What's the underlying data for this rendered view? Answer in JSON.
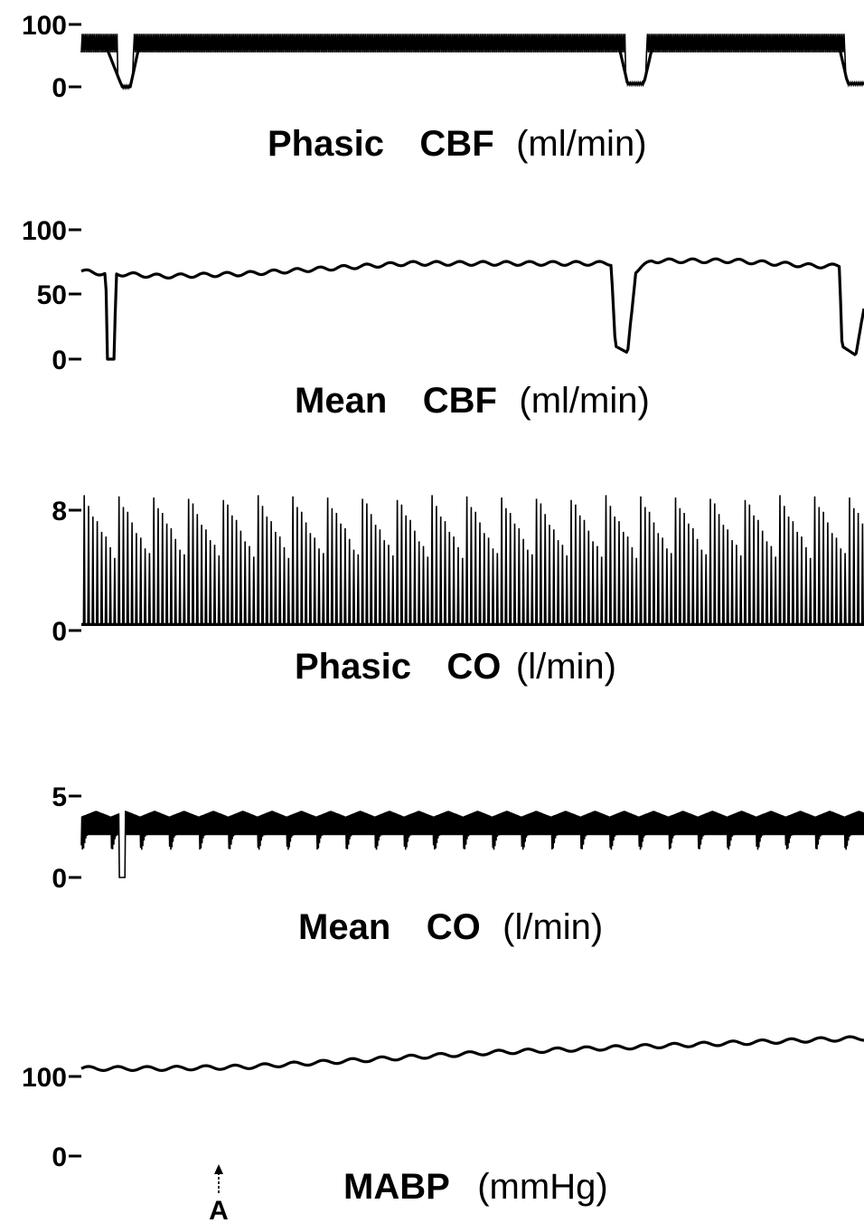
{
  "chart_data": [
    {
      "type": "line",
      "title": "Phasic CBF (ml/min)",
      "title_parts": [
        "Phasic",
        "CBF",
        "(ml/min)"
      ],
      "y_ticks": [
        "100",
        "0"
      ],
      "ylim": [
        0,
        100
      ],
      "series": [
        {
          "points": [
            [
              0,
              68
            ],
            [
              3,
              66
            ],
            [
              5,
              0
            ],
            [
              6,
              0
            ],
            [
              7,
              60
            ],
            [
              20,
              62
            ],
            [
              40,
              64
            ],
            [
              60,
              66
            ],
            [
              66,
              62
            ],
            [
              67,
              5
            ],
            [
              69,
              5
            ],
            [
              70,
              62
            ],
            [
              80,
              64
            ],
            [
              93,
              62
            ],
            [
              94,
              5
            ],
            [
              96,
              5
            ]
          ]
        }
      ],
      "phasic_band": [
        55,
        85
      ]
    },
    {
      "type": "line",
      "title": "Mean CBF (ml/min)",
      "title_parts": [
        "Mean",
        "CBF",
        "(ml/min)"
      ],
      "y_ticks": [
        "100",
        "50",
        "0"
      ],
      "ylim": [
        0,
        100
      ],
      "series": [
        {
          "points": [
            [
              0,
              68
            ],
            [
              3,
              66
            ],
            [
              3.2,
              0
            ],
            [
              4,
              0
            ],
            [
              4.3,
              66
            ],
            [
              10,
              64
            ],
            [
              20,
              66
            ],
            [
              30,
              70
            ],
            [
              40,
              74
            ],
            [
              50,
              74
            ],
            [
              60,
              74
            ],
            [
              65,
              74
            ],
            [
              65.5,
              10
            ],
            [
              67,
              5
            ],
            [
              68,
              68
            ],
            [
              70,
              76
            ],
            [
              80,
              76
            ],
            [
              90,
              72
            ],
            [
              93,
              72
            ],
            [
              93.3,
              10
            ],
            [
              95,
              3
            ],
            [
              96,
              40
            ]
          ]
        }
      ]
    },
    {
      "type": "line",
      "title": "Phasic CO (l/min)",
      "title_parts": [
        "Phasic",
        "CO",
        "(l/min)"
      ],
      "y_ticks": [
        "8",
        "0"
      ],
      "ylim": [
        0,
        8
      ],
      "series": [
        {
          "peak": 9,
          "baseline": 0.4,
          "beats": 180
        }
      ]
    },
    {
      "type": "line",
      "title": "Mean CO (l/min)",
      "title_parts": [
        "Mean",
        "CO",
        "(l/min)"
      ],
      "y_ticks": [
        "5",
        "0"
      ],
      "ylim": [
        0,
        5
      ],
      "series": [
        {
          "upper": 4.1,
          "lower": 2.6,
          "dip_time": 5,
          "dip_value": 0
        }
      ]
    },
    {
      "type": "line",
      "title": "MABP (mmHg)",
      "title_parts": [
        "MABP",
        "(mmHg)"
      ],
      "y_ticks": [
        "100",
        "0"
      ],
      "ylim": [
        0,
        100
      ],
      "series": [
        {
          "points": [
            [
              0,
              110
            ],
            [
              10,
              110
            ],
            [
              20,
              112
            ],
            [
              30,
              118
            ],
            [
              40,
              124
            ],
            [
              50,
              130
            ],
            [
              60,
              134
            ],
            [
              70,
              138
            ],
            [
              80,
              142
            ],
            [
              90,
              146
            ],
            [
              96,
              148
            ]
          ]
        }
      ],
      "marker": {
        "label": "A",
        "time": 15
      }
    }
  ]
}
